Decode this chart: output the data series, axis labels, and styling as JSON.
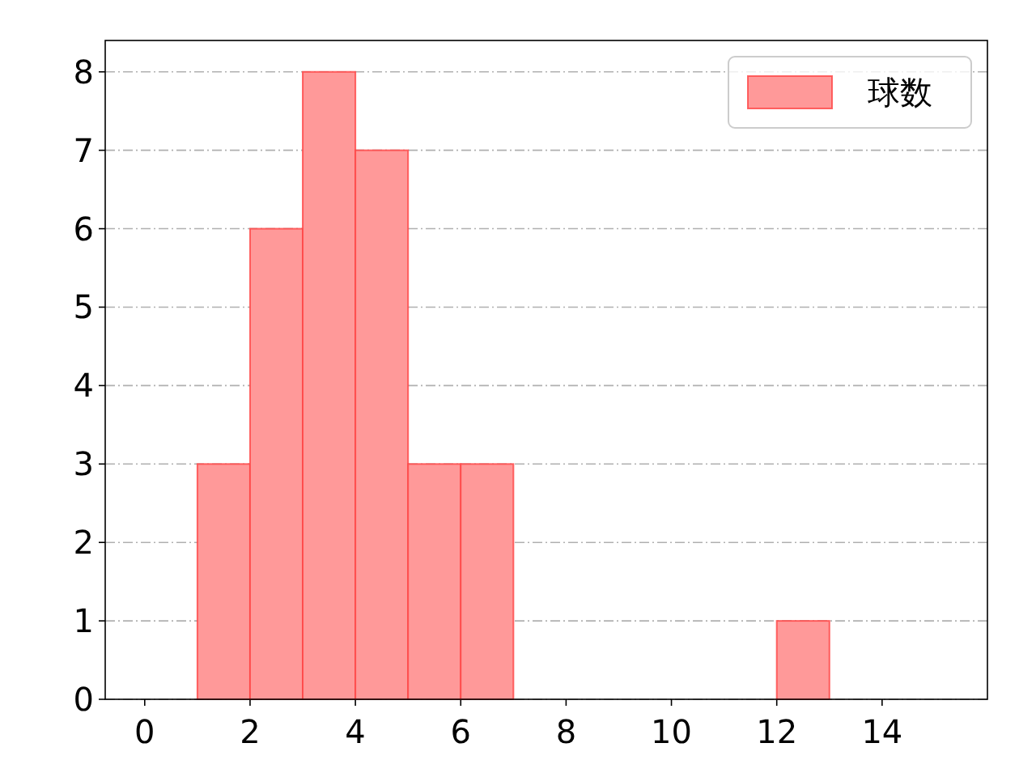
{
  "chart_data": {
    "type": "histogram",
    "bins": [
      1,
      2,
      3,
      4,
      5,
      6,
      7,
      8,
      9,
      10,
      11,
      12,
      13
    ],
    "series": [
      {
        "name": "球数",
        "color": "#ff9999",
        "values": [
          3,
          6,
          8,
          7,
          3,
          3,
          0,
          0,
          0,
          0,
          0,
          1
        ]
      }
    ],
    "xlim": [
      -0.75,
      16
    ],
    "ylim": [
      0,
      8.4
    ],
    "xticks": [
      0,
      2,
      4,
      6,
      8,
      10,
      12,
      14
    ],
    "yticks": [
      0,
      1,
      2,
      3,
      4,
      5,
      6,
      7,
      8
    ],
    "grid": "y",
    "legend": "top right"
  }
}
